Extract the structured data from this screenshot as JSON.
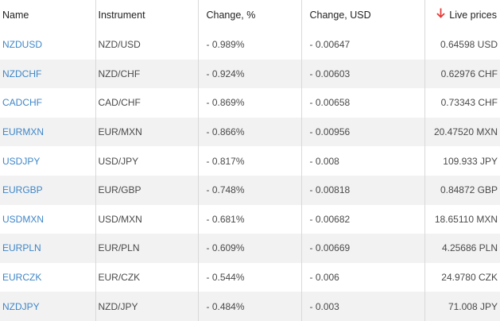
{
  "columns": {
    "name": "Name",
    "instrument": "Instrument",
    "change_pct": "Change, %",
    "change_usd": "Change, USD",
    "live_prices": "Live prices"
  },
  "sort_icon": "arrow-down-icon",
  "sort_color": "#e53935",
  "link_color": "#3f86c8",
  "rows": [
    {
      "name": "NZDUSD",
      "instrument": "NZD/USD",
      "change_pct": "- 0.989%",
      "change_usd": "- 0.00647",
      "price": "0.64598 USD"
    },
    {
      "name": "NZDCHF",
      "instrument": "NZD/CHF",
      "change_pct": "- 0.924%",
      "change_usd": "- 0.00603",
      "price": "0.62976 CHF"
    },
    {
      "name": "CADCHF",
      "instrument": "CAD/CHF",
      "change_pct": "- 0.869%",
      "change_usd": "- 0.00658",
      "price": "0.73343 CHF"
    },
    {
      "name": "EURMXN",
      "instrument": "EUR/MXN",
      "change_pct": "- 0.866%",
      "change_usd": "- 0.00956",
      "price": "20.47520 MXN"
    },
    {
      "name": "USDJPY",
      "instrument": "USD/JPY",
      "change_pct": "- 0.817%",
      "change_usd": "- 0.008",
      "price": "109.933 JPY"
    },
    {
      "name": "EURGBP",
      "instrument": "EUR/GBP",
      "change_pct": "- 0.748%",
      "change_usd": "- 0.00818",
      "price": "0.84872 GBP"
    },
    {
      "name": "USDMXN",
      "instrument": "USD/MXN",
      "change_pct": "- 0.681%",
      "change_usd": "- 0.00682",
      "price": "18.65110 MXN"
    },
    {
      "name": "EURPLN",
      "instrument": "EUR/PLN",
      "change_pct": "- 0.609%",
      "change_usd": "- 0.00669",
      "price": "4.25686 PLN"
    },
    {
      "name": "EURCZK",
      "instrument": "EUR/CZK",
      "change_pct": "- 0.544%",
      "change_usd": "- 0.006",
      "price": "24.9780 CZK"
    },
    {
      "name": "NZDJPY",
      "instrument": "NZD/JPY",
      "change_pct": "- 0.484%",
      "change_usd": "- 0.003",
      "price": "71.008 JPY"
    }
  ]
}
